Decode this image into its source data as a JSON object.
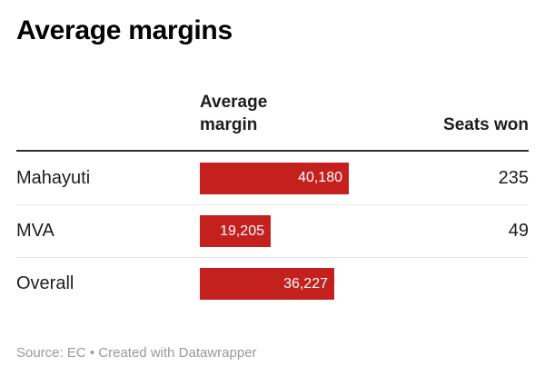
{
  "title": "Average margins",
  "columns": {
    "margin_header": "Average margin",
    "seats_header": "Seats won"
  },
  "footer_text": "Source: EC • Created with Datawrapper",
  "colors": {
    "bar": "#c4201e",
    "bar_label": "#ffffff",
    "header_rule": "#2e2e2e",
    "row_divider": "#e8e8e8",
    "title_text": "#000000",
    "footer_text": "#999999"
  },
  "chart_data": {
    "type": "bar",
    "title": "Average margins",
    "categories": [
      "Mahayuti",
      "MVA",
      "Overall"
    ],
    "series": [
      {
        "name": "Average margin",
        "values": [
          40180,
          19205,
          36227
        ]
      },
      {
        "name": "Seats won",
        "values": [
          235,
          49,
          null
        ]
      }
    ],
    "xlim": [
      0,
      40180
    ],
    "legend_position": "none",
    "grid": false,
    "source": "EC",
    "rows": [
      {
        "label": "Mahayuti",
        "margin_label": "40,180",
        "margin_value": 40180,
        "seats": "235"
      },
      {
        "label": "MVA",
        "margin_label": "19,205",
        "margin_value": 19205,
        "seats": "49"
      },
      {
        "label": "Overall",
        "margin_label": "36,227",
        "margin_value": 36227,
        "seats": ""
      }
    ]
  }
}
